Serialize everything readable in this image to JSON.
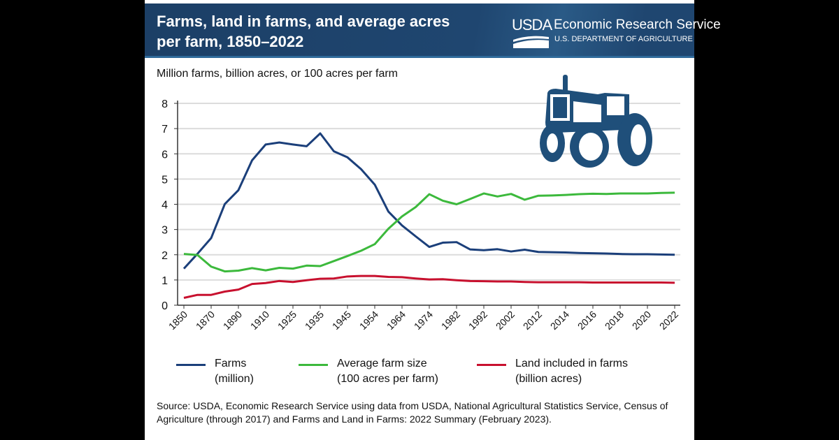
{
  "header": {
    "title": "Farms, land in farms, and average acres per farm, 1850–2022",
    "logo_text": "USDA",
    "agency": "Economic Research Service",
    "department": "U.S. DEPARTMENT OF AGRICULTURE"
  },
  "icon": "tractor-icon",
  "chart_data": {
    "type": "line",
    "ylabel": "Million farms, billion acres, or 100 acres per farm",
    "ylim": [
      0,
      8
    ],
    "yticks": [
      0,
      1,
      2,
      3,
      4,
      5,
      6,
      7,
      8
    ],
    "grid": true,
    "legend_position": "bottom",
    "x": [
      "1850",
      "1860",
      "1870",
      "1880",
      "1890",
      "1900",
      "1910",
      "1920",
      "1925",
      "1930",
      "1935",
      "1940",
      "1945",
      "1950",
      "1954",
      "1959",
      "1964",
      "1969",
      "1974",
      "1978",
      "1982",
      "1987",
      "1992",
      "1997",
      "2002",
      "2007",
      "2012",
      "2013",
      "2014",
      "2015",
      "2016",
      "2017",
      "2018",
      "2019",
      "2020",
      "2021",
      "2022"
    ],
    "xtick_labels": [
      "1850",
      "1870",
      "1890",
      "1910",
      "1925",
      "1935",
      "1945",
      "1954",
      "1964",
      "1974",
      "1982",
      "1992",
      "2002",
      "2012",
      "2014",
      "2016",
      "2018",
      "2020",
      "2022"
    ],
    "series": [
      {
        "name": "Farms",
        "sub": "(million)",
        "color": "#1b3f7a",
        "values": [
          1.45,
          2.04,
          2.66,
          4.01,
          4.56,
          5.74,
          6.37,
          6.45,
          6.37,
          6.3,
          6.81,
          6.1,
          5.86,
          5.39,
          4.78,
          3.71,
          3.16,
          2.73,
          2.31,
          2.48,
          2.5,
          2.21,
          2.18,
          2.22,
          2.13,
          2.2,
          2.11,
          2.1,
          2.09,
          2.07,
          2.06,
          2.05,
          2.03,
          2.02,
          2.02,
          2.01,
          2.0
        ]
      },
      {
        "name": "Average farm size",
        "sub": "(100 acres per farm)",
        "color": "#3cb93c",
        "values": [
          2.03,
          1.99,
          1.53,
          1.34,
          1.37,
          1.47,
          1.38,
          1.48,
          1.45,
          1.57,
          1.55,
          1.75,
          1.95,
          2.16,
          2.42,
          3.03,
          3.52,
          3.89,
          4.4,
          4.14,
          4.0,
          4.21,
          4.43,
          4.31,
          4.41,
          4.18,
          4.34,
          4.35,
          4.37,
          4.4,
          4.42,
          4.41,
          4.43,
          4.43,
          4.43,
          4.45,
          4.46
        ]
      },
      {
        "name": "Land included in farms",
        "sub": "(billion acres)",
        "color": "#c8102e",
        "values": [
          0.29,
          0.41,
          0.41,
          0.54,
          0.62,
          0.84,
          0.88,
          0.96,
          0.92,
          0.99,
          1.05,
          1.06,
          1.14,
          1.16,
          1.16,
          1.12,
          1.11,
          1.06,
          1.02,
          1.03,
          0.99,
          0.96,
          0.95,
          0.94,
          0.94,
          0.92,
          0.91,
          0.91,
          0.91,
          0.91,
          0.9,
          0.9,
          0.9,
          0.9,
          0.9,
          0.9,
          0.89
        ]
      }
    ]
  },
  "source": "Source: USDA, Economic Research Service using data from USDA, National Agricultural Statistics Service, Census of Agriculture (through 2017) and Farms and Land in Farms: 2022 Summary (February 2023)."
}
